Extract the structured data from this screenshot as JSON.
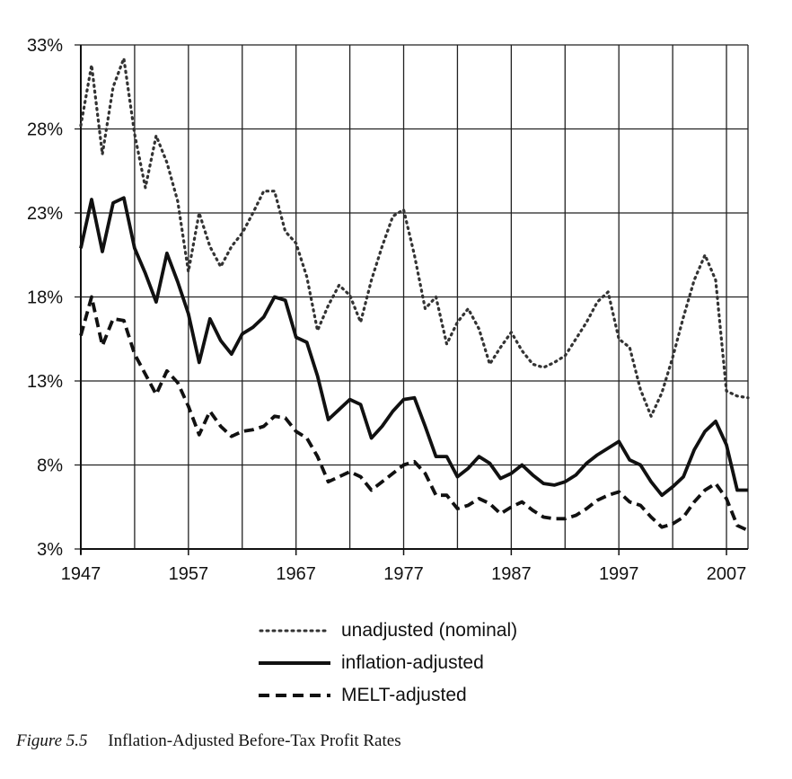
{
  "chart_data": {
    "type": "line",
    "x_ticks": [
      "1947",
      "1957",
      "1967",
      "1977",
      "1987",
      "1997",
      "2007"
    ],
    "y_ticks": [
      "3%",
      "8%",
      "13%",
      "18%",
      "23%",
      "28%",
      "33%"
    ],
    "xlim": [
      1947,
      2009
    ],
    "ylim": [
      3,
      33
    ],
    "grid": true,
    "legend_position": "bottom",
    "series": [
      {
        "name": "unadjusted (nominal)",
        "style": "dotted",
        "color": "#333333",
        "x": [
          1947,
          1948,
          1949,
          1950,
          1951,
          1952,
          1953,
          1954,
          1955,
          1956,
          1957,
          1958,
          1959,
          1960,
          1961,
          1962,
          1963,
          1964,
          1965,
          1966,
          1967,
          1968,
          1969,
          1970,
          1971,
          1972,
          1973,
          1974,
          1975,
          1976,
          1977,
          1978,
          1979,
          1980,
          1981,
          1982,
          1983,
          1984,
          1985,
          1986,
          1987,
          1988,
          1989,
          1990,
          1991,
          1992,
          1993,
          1994,
          1995,
          1996,
          1997,
          1998,
          1999,
          2000,
          2001,
          2002,
          2003,
          2004,
          2005,
          2006,
          2007,
          2008,
          2009
        ],
        "values": [
          28.2,
          31.8,
          26.5,
          30.5,
          32.2,
          27.7,
          24.5,
          27.6,
          26.0,
          23.7,
          19.5,
          23.0,
          21.0,
          19.8,
          21.0,
          21.8,
          23.0,
          24.3,
          24.3,
          21.9,
          21.2,
          19.2,
          16.0,
          17.5,
          18.7,
          18.1,
          16.5,
          19.0,
          21.0,
          22.8,
          23.2,
          20.5,
          17.3,
          18.0,
          15.2,
          16.5,
          17.3,
          16.1,
          14.0,
          15.0,
          15.9,
          14.8,
          14.0,
          13.8,
          14.1,
          14.5,
          15.5,
          16.5,
          17.7,
          18.3,
          15.5,
          15.0,
          12.5,
          10.9,
          12.3,
          14.4,
          16.8,
          19.0,
          20.5,
          19.0,
          12.4,
          12.1,
          12.0
        ]
      },
      {
        "name": "inflation-adjusted",
        "style": "solid",
        "color": "#111111",
        "x": [
          1947,
          1948,
          1949,
          1950,
          1951,
          1952,
          1953,
          1954,
          1955,
          1956,
          1957,
          1958,
          1959,
          1960,
          1961,
          1962,
          1963,
          1964,
          1965,
          1966,
          1967,
          1968,
          1969,
          1970,
          1971,
          1972,
          1973,
          1974,
          1975,
          1976,
          1977,
          1978,
          1979,
          1980,
          1981,
          1982,
          1983,
          1984,
          1985,
          1986,
          1987,
          1988,
          1989,
          1990,
          1991,
          1992,
          1993,
          1994,
          1995,
          1996,
          1997,
          1998,
          1999,
          2000,
          2001,
          2002,
          2003,
          2004,
          2005,
          2006,
          2007,
          2008,
          2009
        ],
        "values": [
          20.9,
          23.8,
          20.7,
          23.6,
          23.9,
          20.9,
          19.4,
          17.7,
          20.6,
          18.9,
          17.0,
          14.1,
          16.7,
          15.4,
          14.6,
          15.8,
          16.2,
          16.8,
          18.0,
          17.8,
          15.6,
          15.3,
          13.3,
          10.7,
          11.3,
          11.9,
          11.6,
          9.6,
          10.3,
          11.2,
          11.9,
          12.0,
          10.3,
          8.5,
          8.5,
          7.3,
          7.8,
          8.5,
          8.1,
          7.2,
          7.5,
          8.0,
          7.4,
          6.9,
          6.8,
          7.0,
          7.4,
          8.1,
          8.6,
          9.0,
          9.4,
          8.3,
          8.0,
          7.0,
          6.2,
          6.7,
          7.3,
          8.9,
          10.0,
          10.6,
          9.2,
          6.5,
          6.5
        ]
      },
      {
        "name": "MELT-adjusted",
        "style": "dashed",
        "color": "#111111",
        "x": [
          1947,
          1948,
          1949,
          1950,
          1951,
          1952,
          1953,
          1954,
          1955,
          1956,
          1957,
          1958,
          1959,
          1960,
          1961,
          1962,
          1963,
          1964,
          1965,
          1966,
          1967,
          1968,
          1969,
          1970,
          1971,
          1972,
          1973,
          1974,
          1975,
          1976,
          1977,
          1978,
          1979,
          1980,
          1981,
          1982,
          1983,
          1984,
          1985,
          1986,
          1987,
          1988,
          1989,
          1990,
          1991,
          1992,
          1993,
          1994,
          1995,
          1996,
          1997,
          1998,
          1999,
          2000,
          2001,
          2002,
          2003,
          2004,
          2005,
          2006,
          2007,
          2008,
          2009
        ],
        "values": [
          15.7,
          18.0,
          15.1,
          16.7,
          16.6,
          14.6,
          13.4,
          12.2,
          13.6,
          12.9,
          11.5,
          9.8,
          11.2,
          10.3,
          9.7,
          10.0,
          10.1,
          10.3,
          10.9,
          10.8,
          10.0,
          9.6,
          8.5,
          7.0,
          7.3,
          7.6,
          7.3,
          6.5,
          7.0,
          7.5,
          8.0,
          8.2,
          7.5,
          6.2,
          6.2,
          5.4,
          5.6,
          6.0,
          5.7,
          5.1,
          5.5,
          5.8,
          5.3,
          4.9,
          4.8,
          4.8,
          5.0,
          5.4,
          5.9,
          6.2,
          6.4,
          5.8,
          5.6,
          4.9,
          4.3,
          4.5,
          4.9,
          5.8,
          6.5,
          6.9,
          6.0,
          4.4,
          4.1
        ]
      }
    ]
  },
  "caption": {
    "figure_number": "Figure 5.5",
    "title": "Inflation-Adjusted Before-Tax Profit Rates"
  }
}
